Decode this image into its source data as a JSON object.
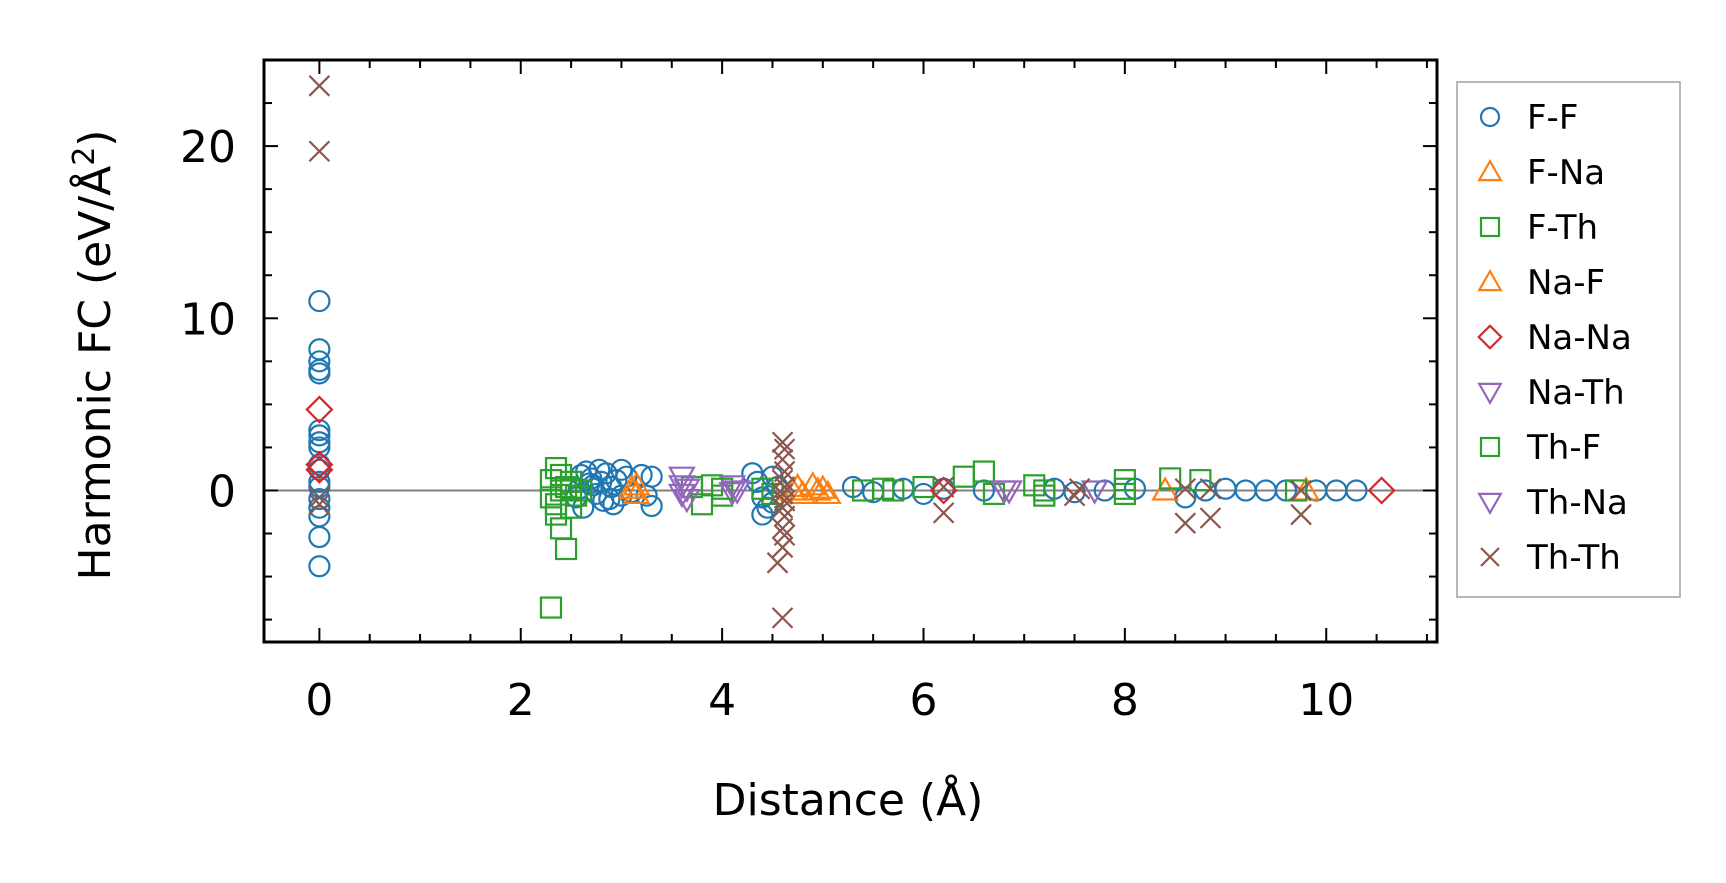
{
  "chart_data": {
    "type": "scatter",
    "xlabel": "Distance (Å)",
    "ylabel": "Harmonic FC (eV/Å",
    "ylabel_sup": "2",
    "ylabel_close": ")",
    "xlim": [
      -0.55,
      11.1
    ],
    "ylim": [
      -8.8,
      25.0
    ],
    "xticks": [
      0,
      2,
      4,
      6,
      8,
      10
    ],
    "yticks": [
      0,
      10,
      20
    ],
    "legend_position": "outside-right",
    "zero_line": true,
    "series": [
      {
        "name": "F-F",
        "marker": "circle",
        "color": "#1f77b4",
        "points": [
          [
            0,
            11.0
          ],
          [
            0,
            8.2
          ],
          [
            0,
            7.5
          ],
          [
            0,
            7.0
          ],
          [
            0,
            6.8
          ],
          [
            0,
            3.5
          ],
          [
            0,
            3.2
          ],
          [
            0,
            2.8
          ],
          [
            0,
            2.5
          ],
          [
            0,
            1.5
          ],
          [
            0,
            1.2
          ],
          [
            0,
            0.5
          ],
          [
            0,
            0.2
          ],
          [
            0,
            -0.5
          ],
          [
            0,
            -1.0
          ],
          [
            0,
            -1.5
          ],
          [
            0,
            -2.7
          ],
          [
            0,
            -4.4
          ],
          [
            2.6,
            0.9
          ],
          [
            2.65,
            1.1
          ],
          [
            2.7,
            0.7
          ],
          [
            2.72,
            0.3
          ],
          [
            2.75,
            -0.2
          ],
          [
            2.8,
            0.5
          ],
          [
            2.82,
            -0.6
          ],
          [
            2.85,
            1.0
          ],
          [
            2.9,
            0.2
          ],
          [
            2.92,
            -0.8
          ],
          [
            2.95,
            0.6
          ],
          [
            3.0,
            -0.3
          ],
          [
            3.05,
            0.8
          ],
          [
            3.1,
            -0.1
          ],
          [
            2.55,
            -0.4
          ],
          [
            2.58,
            0.1
          ],
          [
            2.62,
            -1.0
          ],
          [
            2.68,
            0.4
          ],
          [
            2.78,
            1.2
          ],
          [
            2.88,
            -0.5
          ],
          [
            3.0,
            1.2
          ],
          [
            3.2,
            0.9
          ],
          [
            3.3,
            -0.9
          ],
          [
            3.3,
            0.8
          ],
          [
            3.25,
            -0.3
          ],
          [
            4.3,
            1.0
          ],
          [
            4.35,
            0.5
          ],
          [
            4.4,
            -0.4
          ],
          [
            4.45,
            -1.0
          ],
          [
            4.5,
            0.8
          ],
          [
            4.55,
            0.2
          ],
          [
            4.4,
            -1.4
          ],
          [
            4.5,
            -0.7
          ],
          [
            5.3,
            0.2
          ],
          [
            5.5,
            -0.1
          ],
          [
            5.8,
            0.1
          ],
          [
            6.0,
            -0.2
          ],
          [
            6.2,
            0.1
          ],
          [
            6.6,
            0.0
          ],
          [
            7.3,
            0.1
          ],
          [
            7.5,
            -0.1
          ],
          [
            7.8,
            0.0
          ],
          [
            8.1,
            0.1
          ],
          [
            8.6,
            -0.4
          ],
          [
            8.8,
            0.0
          ],
          [
            9.0,
            0.1
          ],
          [
            9.2,
            0.0
          ],
          [
            9.4,
            0.0
          ],
          [
            9.6,
            0.0
          ],
          [
            9.9,
            0.0
          ],
          [
            10.1,
            0.0
          ],
          [
            10.3,
            0.0
          ]
        ]
      },
      {
        "name": "F-Na",
        "marker": "triangle-up",
        "color": "#ff7f0e",
        "points": [
          [
            3.15,
            0.3
          ],
          [
            3.15,
            -0.2
          ],
          [
            4.75,
            0.2
          ],
          [
            4.8,
            -0.2
          ],
          [
            4.9,
            0.3
          ],
          [
            5.0,
            0.1
          ],
          [
            5.05,
            -0.2
          ],
          [
            8.4,
            0.0
          ],
          [
            9.8,
            0.0
          ]
        ]
      },
      {
        "name": "F-Th",
        "marker": "square",
        "color": "#2ca02c",
        "points": [
          [
            2.3,
            -0.4
          ],
          [
            2.35,
            -0.8
          ],
          [
            2.35,
            -1.4
          ],
          [
            2.4,
            -2.2
          ],
          [
            2.45,
            -3.4
          ],
          [
            2.3,
            0.6
          ],
          [
            2.35,
            1.3
          ],
          [
            2.4,
            0.9
          ],
          [
            2.45,
            0.2
          ],
          [
            2.5,
            -1.0
          ],
          [
            2.5,
            0.5
          ],
          [
            2.55,
            -0.3
          ],
          [
            2.6,
            0.0
          ],
          [
            2.3,
            -6.8
          ],
          [
            3.7,
            0.2
          ],
          [
            3.8,
            -0.8
          ],
          [
            3.9,
            0.3
          ],
          [
            4.0,
            -0.3
          ],
          [
            4.4,
            0.1
          ],
          [
            4.5,
            -0.2
          ],
          [
            5.4,
            0.0
          ],
          [
            5.6,
            0.1
          ],
          [
            6.0,
            0.2
          ],
          [
            6.4,
            0.8
          ],
          [
            6.6,
            1.1
          ],
          [
            6.7,
            -0.2
          ],
          [
            7.1,
            0.3
          ],
          [
            7.2,
            -0.3
          ],
          [
            8.0,
            0.6
          ],
          [
            8.0,
            -0.2
          ],
          [
            8.45,
            0.7
          ],
          [
            8.75,
            0.6
          ],
          [
            9.7,
            0.0
          ]
        ]
      },
      {
        "name": "Na-F",
        "marker": "triangle-up",
        "color": "#ff7f0e",
        "points": [
          [
            3.1,
            0.1
          ],
          [
            4.7,
            0.0
          ],
          [
            4.95,
            0.0
          ]
        ]
      },
      {
        "name": "Na-Na",
        "marker": "diamond",
        "color": "#d62728",
        "points": [
          [
            0,
            4.7
          ],
          [
            0,
            1.5
          ],
          [
            0,
            1.2
          ],
          [
            6.2,
            0.0
          ],
          [
            10.55,
            0.0
          ]
        ]
      },
      {
        "name": "Na-Th",
        "marker": "triangle-down",
        "color": "#9467bd",
        "points": [
          [
            3.6,
            0.8
          ],
          [
            3.6,
            0.3
          ],
          [
            3.6,
            -0.2
          ],
          [
            3.65,
            -0.5
          ],
          [
            4.1,
            0.3
          ],
          [
            4.1,
            -0.1
          ],
          [
            6.8,
            0.0
          ],
          [
            7.7,
            0.0
          ]
        ]
      },
      {
        "name": "Th-F",
        "marker": "square",
        "color": "#2ca02c",
        "points": [
          [
            2.4,
            0.0
          ],
          [
            2.5,
            0.1
          ],
          [
            4.0,
            0.1
          ],
          [
            5.7,
            0.0
          ],
          [
            7.2,
            0.0
          ],
          [
            8.0,
            0.1
          ]
        ]
      },
      {
        "name": "Th-Na",
        "marker": "triangle-down",
        "color": "#9467bd",
        "points": [
          [
            3.65,
            0.1
          ],
          [
            4.15,
            0.0
          ],
          [
            6.85,
            0.0
          ]
        ]
      },
      {
        "name": "Th-Th",
        "marker": "x",
        "color": "#8c564b",
        "points": [
          [
            0,
            23.5
          ],
          [
            0,
            19.7
          ],
          [
            0,
            -0.4
          ],
          [
            0,
            -0.8
          ],
          [
            4.6,
            2.8
          ],
          [
            4.62,
            2.4
          ],
          [
            4.6,
            1.8
          ],
          [
            4.62,
            1.1
          ],
          [
            4.6,
            0.6
          ],
          [
            4.62,
            0.2
          ],
          [
            4.6,
            -0.2
          ],
          [
            4.62,
            -0.6
          ],
          [
            4.6,
            -1.0
          ],
          [
            4.62,
            -1.5
          ],
          [
            4.6,
            -2.2
          ],
          [
            4.62,
            -2.6
          ],
          [
            4.6,
            -3.3
          ],
          [
            4.55,
            -4.2
          ],
          [
            4.6,
            -7.4
          ],
          [
            6.2,
            -1.3
          ],
          [
            6.2,
            0.2
          ],
          [
            7.5,
            -0.3
          ],
          [
            7.55,
            0.1
          ],
          [
            8.6,
            -1.9
          ],
          [
            8.6,
            0.1
          ],
          [
            8.85,
            -1.6
          ],
          [
            8.85,
            0.1
          ],
          [
            9.75,
            -1.4
          ],
          [
            9.75,
            0.0
          ]
        ]
      }
    ]
  }
}
